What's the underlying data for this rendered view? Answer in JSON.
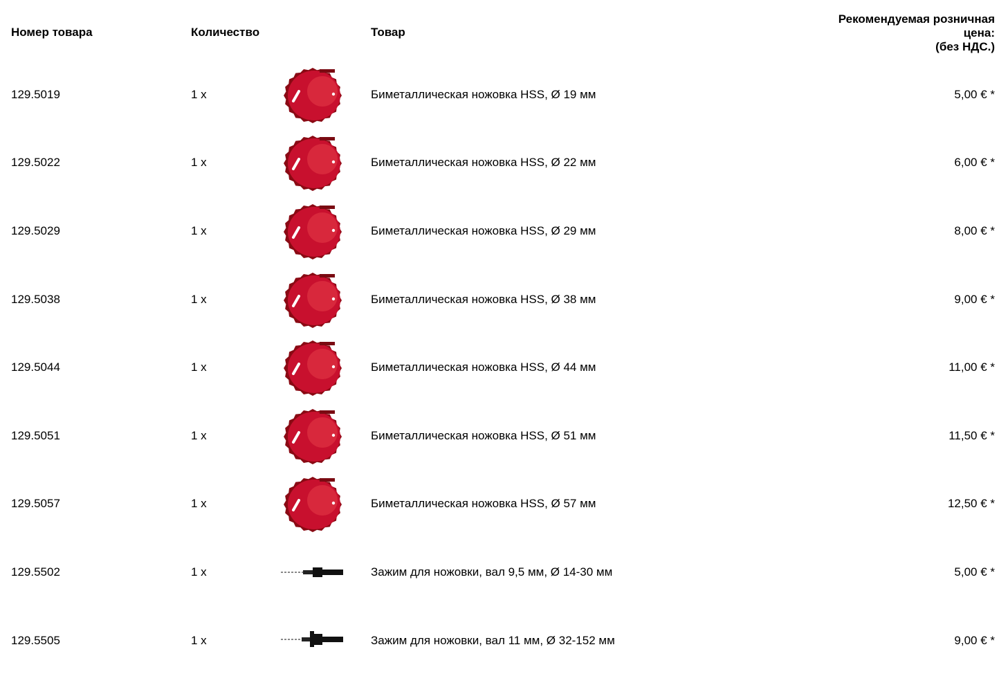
{
  "header": {
    "item_number": "Номер товара",
    "quantity": "Количество",
    "product": "Товар",
    "price_line1": "Рекомендуемая розничная",
    "price_line2": "цена:",
    "price_line3": "(без НДС.)"
  },
  "rows": [
    {
      "number": "129.5019",
      "qty": "1 x",
      "image": "hole-saw-icon",
      "name": "Биметаллическая ножовка HSS, Ø 19 мм",
      "price": "5,00 € *"
    },
    {
      "number": "129.5022",
      "qty": "1 x",
      "image": "hole-saw-icon",
      "name": "Биметаллическая ножовка HSS, Ø 22 мм",
      "price": "6,00 € *"
    },
    {
      "number": "129.5029",
      "qty": "1 x",
      "image": "hole-saw-icon",
      "name": "Биметаллическая ножовка HSS, Ø 29 мм",
      "price": "8,00 € *"
    },
    {
      "number": "129.5038",
      "qty": "1 x",
      "image": "hole-saw-icon",
      "name": "Биметаллическая ножовка HSS, Ø 38 мм",
      "price": "9,00 € *"
    },
    {
      "number": "129.5044",
      "qty": "1 x",
      "image": "hole-saw-icon",
      "name": "Биметаллическая ножовка HSS, Ø 44 мм",
      "price": "11,00 € *"
    },
    {
      "number": "129.5051",
      "qty": "1 x",
      "image": "hole-saw-icon",
      "name": "Биметаллическая ножовка HSS, Ø 51 мм",
      "price": "11,50 € *"
    },
    {
      "number": "129.5057",
      "qty": "1 x",
      "image": "hole-saw-icon",
      "name": "Биметаллическая ножовка HSS, Ø 57 мм",
      "price": "12,50 € *"
    },
    {
      "number": "129.5502",
      "qty": "1 x",
      "image": "arbor-icon",
      "name": "Зажим для ножовки, вал 9,5 мм, Ø 14-30 мм",
      "price": "5,00 € *"
    },
    {
      "number": "129.5505",
      "qty": "1 x",
      "image": "arbor-large-icon",
      "name": "Зажим для ножовки, вал 11 мм, Ø 32-152 мм",
      "price": "9,00 € *"
    }
  ],
  "colors": {
    "saw_red": "#c8102e",
    "saw_dark": "#8a0a14",
    "arbor_dark": "#111111"
  }
}
